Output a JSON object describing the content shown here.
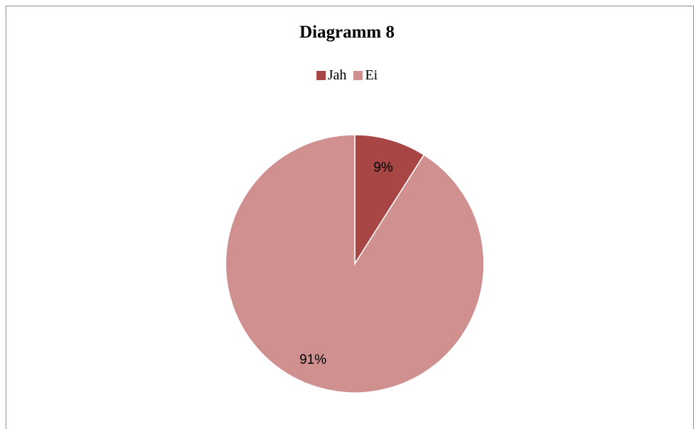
{
  "chart_data": {
    "type": "pie",
    "title": "Diagramm 8",
    "categories": [
      "Jah",
      "Ei"
    ],
    "values": [
      9,
      91
    ],
    "labels": [
      "9%",
      "91%"
    ],
    "colors": [
      "#a84545",
      "#d09090"
    ],
    "legend_position": "top"
  }
}
